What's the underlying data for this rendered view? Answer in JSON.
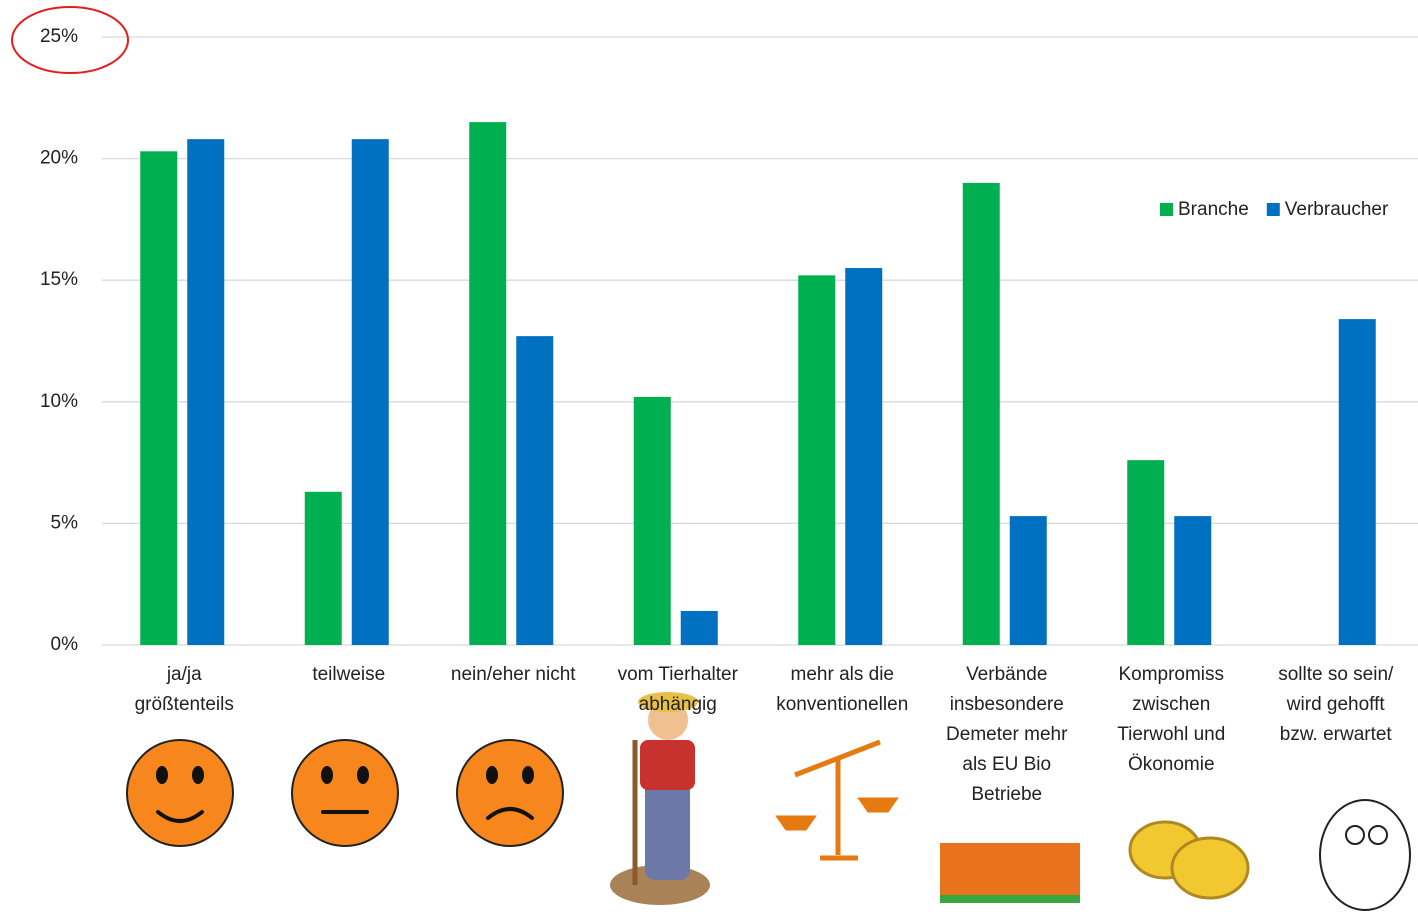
{
  "chart_data": {
    "type": "bar",
    "categories": [
      "ja/ja\ngrößtenteils",
      "teilweise",
      "nein/eher nicht",
      "vom Tierhalter\nabhängig",
      "mehr als die\nkonventionellen",
      "Verbände\ninsbesondere\nDemeter mehr\nals EU Bio\nBetriebe",
      "Kompromiss\nzwischen\nTierwohl und\nÖkonomie",
      "sollte so sein/\nwird gehofft\nbzw. erwartet"
    ],
    "series": [
      {
        "name": "Branche",
        "color": "#00b050",
        "values": [
          20.3,
          6.3,
          21.5,
          10.2,
          15.2,
          19.0,
          7.6,
          0
        ]
      },
      {
        "name": "Verbraucher",
        "color": "#0070c0",
        "values": [
          20.8,
          20.8,
          12.7,
          1.4,
          15.5,
          5.3,
          5.3,
          13.4
        ]
      }
    ],
    "ylim": [
      0,
      25
    ],
    "yticks": [
      {
        "value": 0,
        "label": "0%"
      },
      {
        "value": 5,
        "label": "5%"
      },
      {
        "value": 10,
        "label": "10%"
      },
      {
        "value": 15,
        "label": "15%"
      },
      {
        "value": 20,
        "label": "20%"
      },
      {
        "value": 25,
        "label": "25%"
      }
    ],
    "grid": true,
    "legend": "upper right"
  }
}
